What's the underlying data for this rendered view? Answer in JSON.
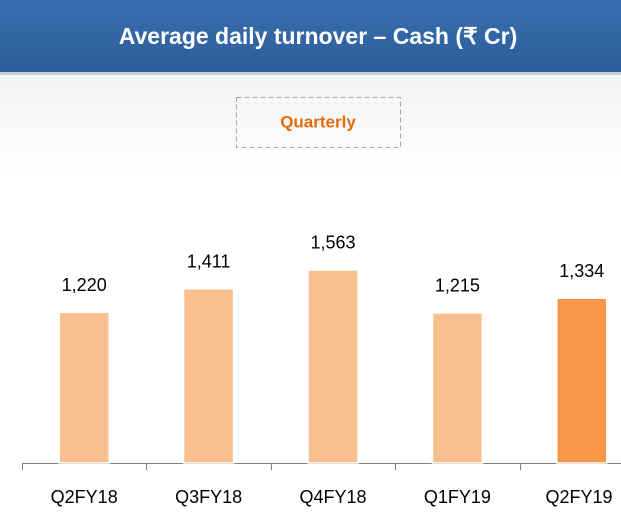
{
  "chart_data": {
    "type": "bar",
    "title": "Average daily turnover – Cash (₹ Cr)",
    "annotation": "Quarterly",
    "categories": [
      "Q2FY18",
      "Q3FY18",
      "Q4FY18",
      "Q1FY19",
      "Q2FY19"
    ],
    "values": [
      1220,
      1411,
      1563,
      1215,
      1334
    ],
    "value_labels": [
      "1,220",
      "1,411",
      "1,563",
      "1,215",
      "1,334"
    ],
    "colors": [
      "#f9c08f",
      "#f9c08f",
      "#f9c08f",
      "#f9c08f",
      "#f79646"
    ],
    "ylim": [
      0,
      2000
    ]
  }
}
